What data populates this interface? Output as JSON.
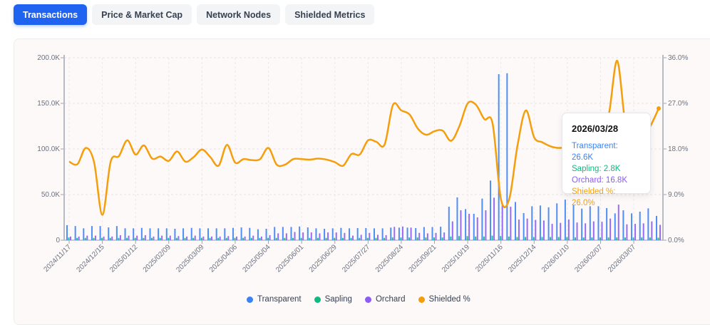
{
  "tabs": [
    {
      "label": "Transactions",
      "active": true
    },
    {
      "label": "Price & Market Cap"
    },
    {
      "label": "Network Nodes"
    },
    {
      "label": "Shielded Metrics"
    }
  ],
  "colors": {
    "transparent": "#3b82f6",
    "sapling": "#10b981",
    "orchard": "#8b5cf6",
    "shielded": "#f59e0b",
    "active_tab": "#1f63f0"
  },
  "tooltip": {
    "date": "2026/03/28",
    "rows": [
      "Transparent: 26.6K",
      "Sapling: 2.8K",
      "Orchard: 16.8K",
      "Shielded %: 26.0%"
    ]
  },
  "legend": [
    "Transparent",
    "Sapling",
    "Orchard",
    "Shielded %"
  ],
  "chart_data": {
    "type": "bar+line",
    "x_start": "2024/11/17",
    "x_interval": "weekly",
    "x_end": "2026/03/28",
    "x_tick_labels": [
      "2024/11/17",
      "2024/12/15",
      "2025/01/12",
      "2025/02/09",
      "2025/03/09",
      "2025/04/06",
      "2025/05/04",
      "2025/06/01",
      "2025/06/29",
      "2025/07/27",
      "2025/08/24",
      "2025/09/21",
      "2025/10/19",
      "2025/11/16",
      "2025/12/14",
      "2026/01/10",
      "2026/02/07",
      "2026/03/07"
    ],
    "y_left": {
      "ticks": [
        "0",
        "50.0K",
        "100.0K",
        "150.0K",
        "200.0K"
      ],
      "range": [
        0,
        200
      ]
    },
    "y_right": {
      "ticks": [
        "0.0%",
        "9.0%",
        "18.0%",
        "27.0%",
        "36.0%"
      ],
      "range": [
        0,
        36
      ]
    },
    "grid": true,
    "legend_position": "bottom",
    "series": [
      {
        "name": "Transparent",
        "axis": "left",
        "unit": "K",
        "type": "bar",
        "values": [
          16.5,
          15.5,
          13,
          15.5,
          15.5,
          14,
          15.5,
          13,
          13,
          13.5,
          13,
          13,
          13,
          12.5,
          13,
          13.5,
          13,
          13,
          13,
          13,
          13.5,
          14,
          13.5,
          12,
          12.5,
          14.5,
          14.5,
          14.5,
          15,
          14,
          13,
          12.5,
          13,
          13.5,
          13,
          13.3,
          13.3,
          13,
          13,
          13.8,
          13.8,
          13.8,
          13.3,
          14.4,
          14.4,
          14.8,
          36.7,
          46.9,
          34.1,
          28.9,
          45.6,
          65.4,
          182,
          183,
          41.9,
          29.7,
          37.2,
          38,
          36,
          40.4,
          44.5,
          38.5,
          34.6,
          37.2,
          37.2,
          35.2,
          29.4,
          32.8,
          29.4,
          31.3,
          34.9,
          26.6
        ]
      },
      {
        "name": "Sapling",
        "axis": "left",
        "unit": "K",
        "type": "bar",
        "values": [
          3,
          2.5,
          2.5,
          2.5,
          2.5,
          2.5,
          2.5,
          2.5,
          2.5,
          2.5,
          2.5,
          2.5,
          2.5,
          2.5,
          2.5,
          2.5,
          2.5,
          2.5,
          2.5,
          2.5,
          2.5,
          2.5,
          2.5,
          2.5,
          2.5,
          2.5,
          2.5,
          2.5,
          2.5,
          2.5,
          2.5,
          2.5,
          2.5,
          2.5,
          2.5,
          2.5,
          2.5,
          2.5,
          2.5,
          3,
          3,
          3,
          3,
          3,
          3,
          3,
          4,
          4.5,
          4.5,
          4,
          4,
          5,
          4.5,
          4,
          3.5,
          3.5,
          3.5,
          3.5,
          3.5,
          3.5,
          3.5,
          3,
          3,
          3,
          3,
          3,
          3,
          3,
          3,
          3,
          3,
          2.8
        ]
      },
      {
        "name": "Orchard",
        "axis": "left",
        "unit": "K",
        "type": "bar",
        "values": [
          4,
          4,
          5,
          5,
          4,
          4,
          5.5,
          5,
          5,
          5.5,
          4,
          5,
          5,
          4.5,
          4,
          5,
          4,
          4,
          4,
          4.5,
          4,
          4,
          5,
          4,
          5.5,
          7.5,
          7.5,
          9,
          8.5,
          8.5,
          7.5,
          8.5,
          8.5,
          8,
          5,
          5.9,
          8,
          5.9,
          5.5,
          14.6,
          15,
          13.8,
          8,
          7.5,
          8,
          8.5,
          20.6,
          32.8,
          28.9,
          25,
          32.8,
          46.6,
          38.3,
          36.7,
          22.6,
          23.7,
          22.2,
          21.6,
          17.9,
          19,
          22.7,
          19.4,
          18.5,
          20.6,
          20.2,
          23.7,
          39,
          17.4,
          17.9,
          18.5,
          20.6,
          16.8
        ]
      },
      {
        "name": "Shielded %",
        "axis": "right",
        "unit": "%",
        "type": "line",
        "values": [
          15.5,
          15,
          18.2,
          15.4,
          5,
          15.5,
          16.6,
          19.7,
          16.9,
          18.7,
          16.1,
          16.5,
          15.65,
          17.5,
          15.5,
          16.4,
          17.9,
          16.4,
          14.7,
          18.8,
          15.3,
          16,
          15.8,
          16,
          18.2,
          14.9,
          14.9,
          16,
          16,
          15.9,
          16.1,
          15.9,
          15.4,
          14.7,
          17,
          16.9,
          19.7,
          19.4,
          18.9,
          26.7,
          25.6,
          24.8,
          22,
          20.8,
          21.5,
          21.6,
          19.6,
          22.5,
          27,
          26.7,
          23.9,
          23,
          8.1,
          8.1,
          18.7,
          25.6,
          20.3,
          19.3,
          18.5,
          18.2,
          18.5,
          19,
          20,
          21,
          22,
          24.9,
          35.4,
          23,
          21,
          20,
          22.5,
          26
        ]
      }
    ]
  }
}
